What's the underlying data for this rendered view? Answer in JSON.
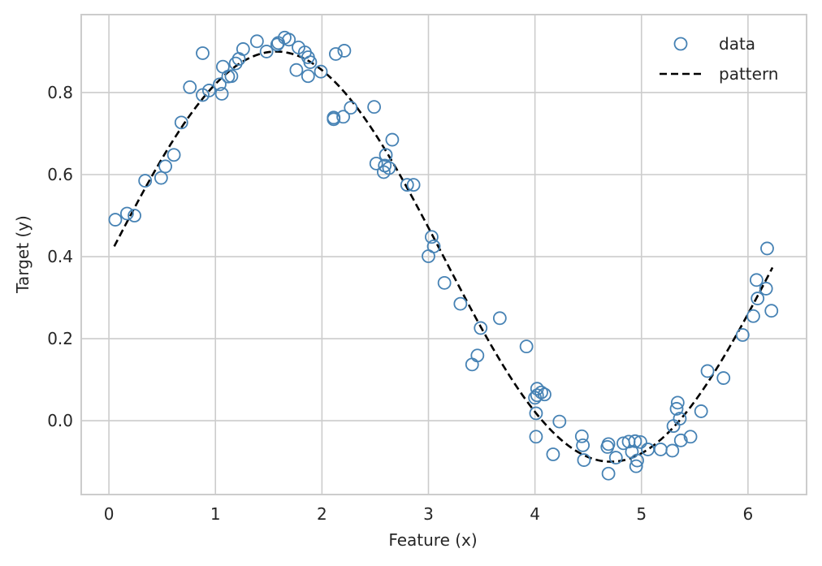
{
  "chart_data": {
    "type": "scatter",
    "title": "",
    "xlabel": "Feature (x)",
    "ylabel": "Target (y)",
    "xlim": [
      -0.26,
      6.55
    ],
    "ylim": [
      -0.18,
      0.99
    ],
    "xticks": [
      0,
      1,
      2,
      3,
      4,
      5,
      6
    ],
    "yticks": [
      0.0,
      0.2,
      0.4,
      0.6,
      0.8
    ],
    "xtick_labels": [
      "0",
      "1",
      "2",
      "3",
      "4",
      "5",
      "6"
    ],
    "ytick_labels": [
      "0.0",
      "0.2",
      "0.4",
      "0.6",
      "0.8"
    ],
    "grid": true,
    "legend_position": "top-right",
    "colors": {
      "data": "#4682b4",
      "pattern": "#000000",
      "grid": "#cccccc",
      "frame": "#cccccc"
    },
    "series": [
      {
        "name": "data",
        "kind": "scatter",
        "marker": "open-circle",
        "x": [
          0.06,
          0.17,
          0.24,
          0.34,
          0.49,
          0.53,
          0.61,
          0.68,
          0.76,
          0.88,
          0.88,
          0.94,
          1.04,
          1.06,
          1.07,
          1.12,
          1.15,
          1.19,
          1.22,
          1.26,
          1.39,
          1.48,
          1.58,
          1.59,
          1.65,
          1.69,
          1.76,
          1.78,
          1.84,
          1.87,
          1.87,
          1.89,
          1.99,
          2.11,
          2.11,
          2.13,
          2.2,
          2.21,
          2.27,
          2.49,
          2.51,
          2.58,
          2.59,
          2.6,
          2.63,
          2.66,
          2.8,
          2.86,
          3.0,
          3.03,
          3.05,
          3.15,
          3.3,
          3.41,
          3.46,
          3.49,
          3.67,
          3.92,
          4.0,
          4.01,
          4.01,
          4.02,
          4.02,
          4.06,
          4.09,
          4.17,
          4.23,
          4.44,
          4.45,
          4.46,
          4.68,
          4.69,
          4.69,
          4.76,
          4.83,
          4.88,
          4.91,
          4.94,
          4.95,
          4.96,
          4.99,
          5.06,
          5.18,
          5.29,
          5.3,
          5.33,
          5.34,
          5.36,
          5.37,
          5.46,
          5.56,
          5.62,
          5.77,
          5.95,
          6.05,
          6.08,
          6.09,
          6.17,
          6.18,
          6.22
        ],
        "y": [
          0.49,
          0.505,
          0.5,
          0.585,
          0.592,
          0.62,
          0.648,
          0.727,
          0.813,
          0.896,
          0.794,
          0.805,
          0.82,
          0.797,
          0.863,
          0.839,
          0.84,
          0.871,
          0.882,
          0.906,
          0.925,
          0.9,
          0.917,
          0.921,
          0.934,
          0.929,
          0.855,
          0.91,
          0.898,
          0.886,
          0.84,
          0.874,
          0.851,
          0.735,
          0.739,
          0.894,
          0.741,
          0.902,
          0.763,
          0.765,
          0.627,
          0.606,
          0.622,
          0.648,
          0.616,
          0.685,
          0.575,
          0.575,
          0.401,
          0.448,
          0.425,
          0.336,
          0.285,
          0.137,
          0.159,
          0.226,
          0.25,
          0.181,
          0.056,
          0.018,
          -0.039,
          0.078,
          0.062,
          0.069,
          0.064,
          -0.082,
          -0.002,
          -0.038,
          -0.06,
          -0.096,
          -0.064,
          -0.057,
          -0.129,
          -0.09,
          -0.055,
          -0.051,
          -0.076,
          -0.05,
          -0.111,
          -0.097,
          -0.052,
          -0.07,
          -0.07,
          -0.073,
          -0.013,
          0.029,
          0.044,
          0.005,
          -0.048,
          -0.039,
          0.023,
          0.121,
          0.104,
          0.209,
          0.255,
          0.343,
          0.298,
          0.322,
          0.42,
          0.268
        ]
      },
      {
        "name": "pattern",
        "kind": "line",
        "style": "dashed",
        "function": "0.4 + 0.5*sin(x)",
        "x_range": [
          0.05,
          6.23
        ]
      }
    ]
  }
}
